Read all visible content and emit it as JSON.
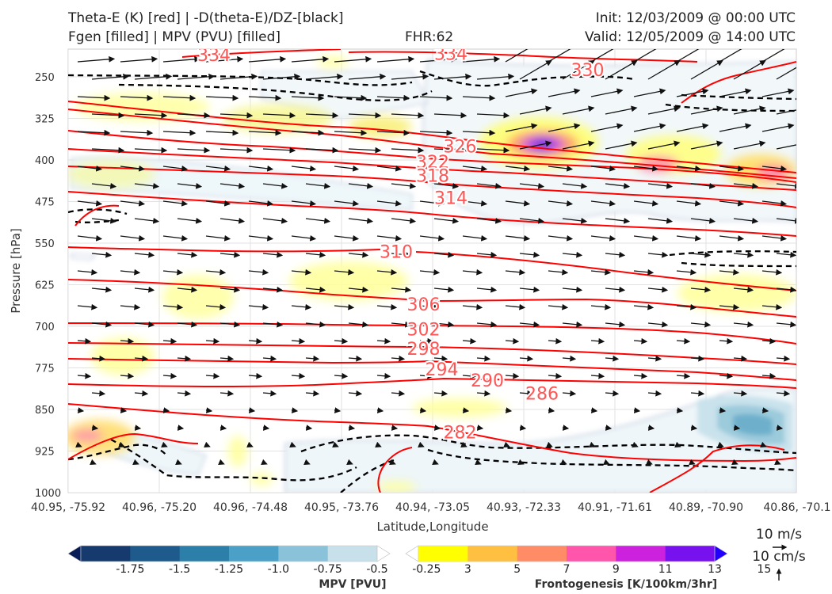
{
  "header": {
    "title_line1": "Theta-E (K) [red] | -D(theta-E)/DZ-[black]",
    "title_line2": "Fgen [filled] | MPV (PVU) [filled]",
    "fhr": "FHR:62",
    "init": "Init: 12/03/2009 @ 00:00 UTC",
    "valid": "Valid: 12/05/2009 @ 14:00 UTC"
  },
  "chart_data": {
    "type": "cross-section",
    "ylabel": "Pressure [hPa]",
    "xlabel": "Latitude,Longitude",
    "y_ticks": [
      250,
      325,
      400,
      475,
      550,
      625,
      700,
      775,
      850,
      925,
      1000
    ],
    "ylim": [
      1000,
      200
    ],
    "x_ticks": [
      "40.95, -75.92",
      "40.96, -75.20",
      "40.96, -74.48",
      "40.95, -73.76",
      "40.94, -73.05",
      "40.93, -72.33",
      "40.91, -71.61",
      "40.89, -70.90",
      "40.86, -70.1"
    ],
    "theta_e_contours": {
      "color": "#ff0000",
      "labels": [
        {
          "value": "334",
          "x": 1.6,
          "p": 210
        },
        {
          "value": "334",
          "x": 4.2,
          "p": 208
        },
        {
          "value": "330",
          "x": 5.7,
          "p": 237
        },
        {
          "value": "326",
          "x": 4.3,
          "p": 375
        },
        {
          "value": "322",
          "x": 4.0,
          "p": 403
        },
        {
          "value": "318",
          "x": 4.0,
          "p": 428
        },
        {
          "value": "314",
          "x": 4.2,
          "p": 468
        },
        {
          "value": "310",
          "x": 3.6,
          "p": 565
        },
        {
          "value": "306",
          "x": 3.9,
          "p": 660
        },
        {
          "value": "302",
          "x": 3.9,
          "p": 705
        },
        {
          "value": "298",
          "x": 3.9,
          "p": 740
        },
        {
          "value": "294",
          "x": 4.1,
          "p": 777
        },
        {
          "value": "290",
          "x": 4.6,
          "p": 797
        },
        {
          "value": "286",
          "x": 5.2,
          "p": 821
        },
        {
          "value": "282",
          "x": 4.3,
          "p": 891
        }
      ]
    },
    "mpv_colorbar": {
      "label": "MPV [PVU]",
      "levels": [
        "-1.75",
        "-1.5",
        "-1.25",
        "-1.0",
        "-0.75",
        "-0.5",
        "-0.25"
      ],
      "colors": [
        "#081d58",
        "#163a6e",
        "#1f5a8c",
        "#2b7fa8",
        "#4aa0c6",
        "#89c2d9",
        "#c7e0ea",
        "#ffffff"
      ]
    },
    "fgen_colorbar": {
      "label": "Frontogenesis [K/100km/3hr]",
      "levels": [
        "3",
        "5",
        "7",
        "9",
        "11",
        "13",
        "15"
      ],
      "colors": [
        "#ffffff",
        "#ffff00",
        "#ffbf40",
        "#ff8c66",
        "#ff55aa",
        "#cc22dd",
        "#7711ee",
        "#2200ff"
      ]
    },
    "vector_key": {
      "horizontal": "10 m/s",
      "vertical": "10 cm/s"
    }
  }
}
